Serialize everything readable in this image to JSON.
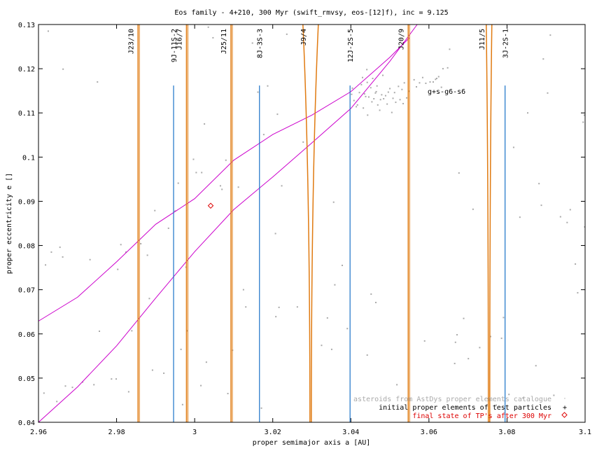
{
  "chart_data": {
    "type": "scatter",
    "title": "Eos family - 4+210, 300 Myr (swift_rmvsy, eos-[12]f), inc = 9.125",
    "xlabel": "proper semimajor axis a [AU]",
    "ylabel": "proper eccentricity e []",
    "xlim": [
      2.96,
      3.1
    ],
    "ylim": [
      0.04,
      0.13
    ],
    "x_ticks": [
      {
        "value": 2.96,
        "label": "2.96"
      },
      {
        "value": 2.98,
        "label": "2.98"
      },
      {
        "value": 3.0,
        "label": "3"
      },
      {
        "value": 3.02,
        "label": "3.02"
      },
      {
        "value": 3.04,
        "label": "3.04"
      },
      {
        "value": 3.06,
        "label": "3.06"
      },
      {
        "value": 3.08,
        "label": "3.08"
      },
      {
        "value": 3.1,
        "label": "3.1"
      }
    ],
    "y_ticks": [
      {
        "value": 0.04,
        "label": "0.04"
      },
      {
        "value": 0.05,
        "label": "0.05"
      },
      {
        "value": 0.06,
        "label": "0.06"
      },
      {
        "value": 0.07,
        "label": "0.07"
      },
      {
        "value": 0.08,
        "label": "0.08"
      },
      {
        "value": 0.09,
        "label": "0.09"
      },
      {
        "value": 0.1,
        "label": "0.1"
      },
      {
        "value": 0.11,
        "label": "0.11"
      },
      {
        "value": 0.12,
        "label": "0.12"
      },
      {
        "value": 0.13,
        "label": "0.13"
      }
    ],
    "grid": false,
    "legend_position": "bottom-right",
    "legend": [
      {
        "label": "asteroids from AstDys proper elements catalogue",
        "color": "#aaaaaa",
        "marker": "dot"
      },
      {
        "label": "initial proper elements of test particles",
        "color": "#000000",
        "marker": "plus"
      },
      {
        "label": "final state of TP's after 300 Myr",
        "color": "#dd0000",
        "marker": "diamond"
      }
    ],
    "series": [
      {
        "label_index": 0,
        "color": "#aaaaaa",
        "points": [
          [
            2.9614,
            0.0466
          ],
          [
            2.9618,
            0.0756
          ],
          [
            2.9625,
            0.1285
          ],
          [
            2.9633,
            0.0785
          ],
          [
            2.9647,
            0.0447
          ],
          [
            2.9655,
            0.0796
          ],
          [
            2.9662,
            0.0774
          ],
          [
            2.9663,
            0.1199
          ],
          [
            2.9669,
            0.0482
          ],
          [
            2.9687,
            0.0479
          ],
          [
            2.9713,
            0.0491
          ],
          [
            2.9732,
            0.0768
          ],
          [
            2.9742,
            0.0485
          ],
          [
            2.9751,
            0.117
          ],
          [
            2.9756,
            0.0606
          ],
          [
            2.9787,
            0.0498
          ],
          [
            2.9799,
            0.0498
          ],
          [
            2.9803,
            0.0746
          ],
          [
            2.9811,
            0.0802
          ],
          [
            2.9824,
            0.0785
          ],
          [
            2.9831,
            0.0469
          ],
          [
            2.9839,
            0.0607
          ],
          [
            2.9862,
            0.0804
          ],
          [
            2.9879,
            0.0778
          ],
          [
            2.9884,
            0.068
          ],
          [
            2.9892,
            0.0518
          ],
          [
            2.9898,
            0.0879
          ],
          [
            2.9921,
            0.0511
          ],
          [
            2.9933,
            0.0839
          ],
          [
            2.995,
            0.0878
          ],
          [
            2.9958,
            0.0941
          ],
          [
            2.9965,
            0.0565
          ],
          [
            2.9969,
            0.044
          ],
          [
            2.998,
            0.0607
          ],
          [
            2.9997,
            0.0995
          ],
          [
            3.0004,
            0.0965
          ],
          [
            3.0016,
            0.0483
          ],
          [
            3.0018,
            0.0965
          ],
          [
            3.0025,
            0.1075
          ],
          [
            3.003,
            0.0536
          ],
          [
            3.0035,
            0.1294
          ],
          [
            3.0047,
            0.127
          ],
          [
            3.007,
            0.0927
          ],
          [
            3.008,
            0.0993
          ],
          [
            3.0085,
            0.0465
          ],
          [
            3.0097,
            0.0563
          ],
          [
            3.0112,
            0.0932
          ],
          [
            3.0125,
            0.07
          ],
          [
            3.0131,
            0.0661
          ],
          [
            3.0148,
            0.1258
          ],
          [
            3.0162,
            0.1147
          ],
          [
            3.0171,
            0.0432
          ],
          [
            3.0177,
            0.1051
          ],
          [
            3.0187,
            0.1161
          ],
          [
            3.0207,
            0.0827
          ],
          [
            3.0208,
            0.0639
          ],
          [
            3.0212,
            0.1097
          ],
          [
            3.0223,
            0.0935
          ],
          [
            3.0236,
            0.1278
          ],
          [
            3.0278,
            0.1034
          ],
          [
            3.0325,
            0.0574
          ],
          [
            3.034,
            0.0636
          ],
          [
            3.0351,
            0.0565
          ],
          [
            3.0356,
            0.0898
          ],
          [
            3.0359,
            0.0711
          ],
          [
            3.0378,
            0.0755
          ],
          [
            3.0391,
            0.0612
          ],
          [
            3.0402,
            0.1142
          ],
          [
            3.0404,
            0.1156
          ],
          [
            3.0408,
            0.1128
          ],
          [
            3.0414,
            0.1114
          ],
          [
            3.0417,
            0.1118
          ],
          [
            3.0422,
            0.1146
          ],
          [
            3.0427,
            0.1164
          ],
          [
            3.043,
            0.118
          ],
          [
            3.0432,
            0.1111
          ],
          [
            3.0435,
            0.1143
          ],
          [
            3.0438,
            0.1137
          ],
          [
            3.0441,
            0.1198
          ],
          [
            3.0442,
            0.1169
          ],
          [
            3.0443,
            0.1095
          ],
          [
            3.0446,
            0.1136
          ],
          [
            3.0451,
            0.1157
          ],
          [
            3.0452,
            0.069
          ],
          [
            3.0454,
            0.1125
          ],
          [
            3.0456,
            0.1178
          ],
          [
            3.0459,
            0.1132
          ],
          [
            3.0463,
            0.1145
          ],
          [
            3.0465,
            0.1148
          ],
          [
            3.0467,
            0.1161
          ],
          [
            3.0469,
            0.1118
          ],
          [
            3.0474,
            0.1106
          ],
          [
            3.0476,
            0.113
          ],
          [
            3.0479,
            0.1141
          ],
          [
            3.0482,
            0.1185
          ],
          [
            3.0484,
            0.1132
          ],
          [
            3.0489,
            0.1139
          ],
          [
            3.0493,
            0.112
          ],
          [
            3.0496,
            0.1147
          ],
          [
            3.05,
            0.1155
          ],
          [
            3.0505,
            0.1101
          ],
          [
            3.0508,
            0.1133
          ],
          [
            3.0512,
            0.1146
          ],
          [
            3.0515,
            0.1124
          ],
          [
            3.0518,
            0.0485
          ],
          [
            3.0522,
            0.116
          ],
          [
            3.0526,
            0.113
          ],
          [
            3.0531,
            0.1153
          ],
          [
            3.0534,
            0.1121
          ],
          [
            3.0537,
            0.1168
          ],
          [
            3.0543,
            0.1134
          ],
          [
            3.0549,
            0.1149
          ],
          [
            3.0562,
            0.1175
          ],
          [
            3.0568,
            0.1159
          ],
          [
            3.0576,
            0.1168
          ],
          [
            3.0584,
            0.118
          ],
          [
            3.0592,
            0.1167
          ],
          [
            3.0603,
            0.117
          ],
          [
            3.0611,
            0.117
          ],
          [
            3.0617,
            0.1176
          ],
          [
            3.062,
            0.1178
          ],
          [
            3.0625,
            0.1182
          ],
          [
            3.0632,
            0.1158
          ],
          [
            3.0636,
            0.12
          ],
          [
            3.0648,
            0.1202
          ],
          [
            3.0653,
            0.1244
          ],
          [
            3.0666,
            0.0533
          ],
          [
            3.0668,
            0.0581
          ],
          [
            3.0672,
            0.0598
          ],
          [
            3.0677,
            0.0964
          ],
          [
            3.0689,
            0.0635
          ],
          [
            3.0701,
            0.0544
          ],
          [
            3.0713,
            0.0882
          ],
          [
            3.073,
            0.0569
          ],
          [
            3.0758,
            0.0594
          ],
          [
            3.0772,
            0.0439
          ],
          [
            3.0786,
            0.059
          ],
          [
            3.0805,
            0.0463
          ],
          [
            3.0817,
            0.1022
          ],
          [
            3.0833,
            0.0864
          ],
          [
            3.0841,
            0.0455
          ],
          [
            3.0853,
            0.11
          ],
          [
            3.0874,
            0.0528
          ],
          [
            3.0882,
            0.094
          ],
          [
            3.0888,
            0.0891
          ],
          [
            3.0893,
            0.1222
          ],
          [
            3.0904,
            0.1145
          ],
          [
            3.0911,
            0.1276
          ],
          [
            3.092,
            0.0461
          ],
          [
            3.0937,
            0.0865
          ],
          [
            3.0954,
            0.0852
          ],
          [
            3.0962,
            0.0881
          ],
          [
            3.0975,
            0.0758
          ],
          [
            3.0981,
            0.0693
          ],
          [
            3.0998,
            0.1095
          ],
          [
            3.0999,
            0.0842
          ],
          [
            3.0995,
            0.1079
          ],
          [
            2.9978,
            0.0751
          ],
          [
            3.0066,
            0.0935
          ],
          [
            3.0216,
            0.066
          ],
          [
            3.0263,
            0.0661
          ],
          [
            3.0442,
            0.0552
          ],
          [
            3.0464,
            0.0671
          ],
          [
            3.0589,
            0.0584
          ],
          [
            3.0791,
            0.0637
          ]
        ]
      },
      {
        "label_index": 2,
        "color": "#dd0000",
        "points": [
          [
            3.0041,
            0.089
          ]
        ]
      }
    ],
    "curves": [
      {
        "label": "g+s-g6-s6",
        "color": "#cc00cc",
        "points": [
          [
            2.96,
            0.0629
          ],
          [
            2.97,
            0.0683
          ],
          [
            2.98,
            0.0763
          ],
          [
            2.99,
            0.0848
          ],
          [
            3.0,
            0.0906
          ],
          [
            3.01,
            0.0993
          ],
          [
            3.02,
            0.1051
          ],
          [
            3.03,
            0.1095
          ],
          [
            3.04,
            0.1148
          ],
          [
            3.05,
            0.1226
          ],
          [
            3.055,
            0.127
          ]
        ]
      },
      {
        "color": "#cc00cc",
        "points": [
          [
            2.96,
            0.04
          ],
          [
            2.97,
            0.048
          ],
          [
            2.98,
            0.0573
          ],
          [
            2.99,
            0.0681
          ],
          [
            3.0,
            0.0786
          ],
          [
            3.01,
            0.0881
          ],
          [
            3.02,
            0.0955
          ],
          [
            3.03,
            0.1032
          ],
          [
            3.04,
            0.111
          ],
          [
            3.05,
            0.1217
          ],
          [
            3.057,
            0.13
          ]
        ]
      }
    ],
    "resonances_jupiter": [
      {
        "label": "J23/10",
        "a": 2.9855
      },
      {
        "label": "J16/7",
        "a": 2.9979
      },
      {
        "label": "J25/11",
        "a": 3.0093
      },
      {
        "label": "J9/4",
        "a": 3.0297
      },
      {
        "label": "J20/9",
        "a": 3.0547
      },
      {
        "label": "J11/5",
        "a": 3.0754
      }
    ],
    "resonances_three_body": [
      {
        "label": "9J-11S-2",
        "a": 2.9946
      },
      {
        "label": "8J-3S-3",
        "a": 3.0166
      },
      {
        "label": "12J-2S-5",
        "a": 3.0398
      },
      {
        "label": "3J-2S-1",
        "a": 3.0795
      }
    ],
    "colors": {
      "jupiter_resonance": "#e07a10",
      "three_body_resonance": "#1a72c8",
      "secular_resonance": "#cc00cc",
      "asteroid": "#aaaaaa",
      "final_tp": "#dd0000"
    }
  }
}
